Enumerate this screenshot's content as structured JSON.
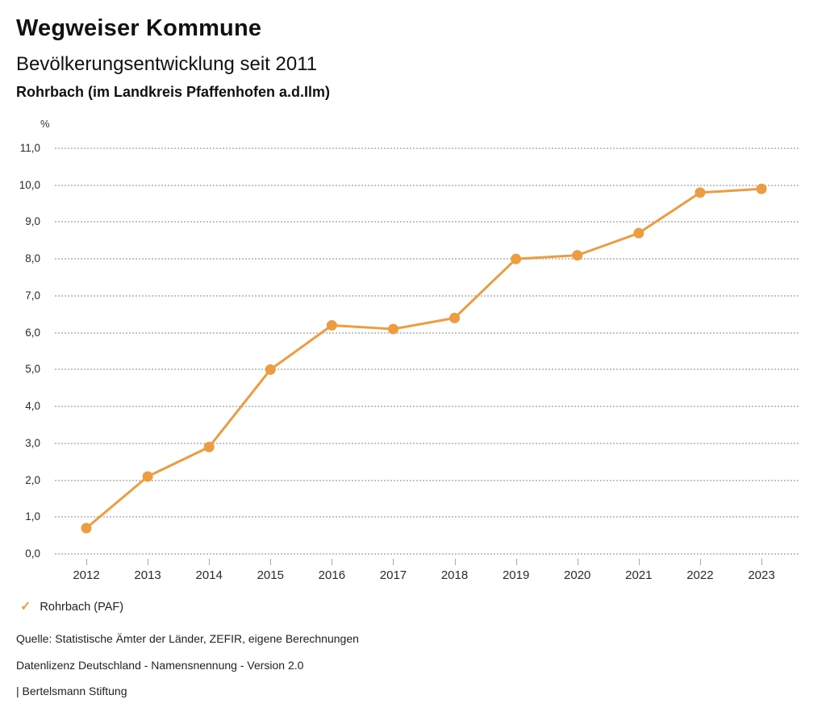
{
  "header": {
    "title": "Wegweiser Kommune",
    "subtitle": "Bevölkerungsentwicklung seit 2011",
    "region_line": "Rohrbach (im Landkreis Pfaffenhofen a.d.Ilm)"
  },
  "chart_data": {
    "type": "line",
    "title": "Bevölkerungsentwicklung seit 2011",
    "xlabel": "",
    "ylabel": "%",
    "unit_label": "%",
    "categories": [
      "2012",
      "2013",
      "2014",
      "2015",
      "2016",
      "2017",
      "2018",
      "2019",
      "2020",
      "2021",
      "2022",
      "2023"
    ],
    "series": [
      {
        "name": "Rohrbach (PAF)",
        "values": [
          0.7,
          2.1,
          2.9,
          5.0,
          6.2,
          6.1,
          6.4,
          8.0,
          8.1,
          8.7,
          9.8,
          9.9
        ],
        "color": "#ED9C42"
      }
    ],
    "ylim": [
      0,
      11
    ],
    "ytick_values": [
      0,
      1,
      2,
      3,
      4,
      5,
      6,
      7,
      8,
      9,
      10,
      11
    ],
    "ytick_labels": [
      "0,0",
      "1,0",
      "2,0",
      "3,0",
      "4,0",
      "5,0",
      "6,0",
      "7,0",
      "8,0",
      "9,0",
      "10,0",
      "11,0"
    ],
    "grid": "horizontal-dotted",
    "legend_position": "bottom-left"
  },
  "legend": {
    "check_icon": "✓",
    "label": "Rohrbach (PAF)"
  },
  "footer": {
    "source": "Quelle: Statistische Ämter der Länder, ZEFIR, eigene Berechnungen",
    "license": "Datenlizenz Deutschland - Namensnennung - Version 2.0",
    "attribution": "| Bertelsmann Stiftung"
  },
  "colors": {
    "accent": "#ED9C42",
    "grid": "#c3c3c3",
    "tick": "#a9a9a9",
    "text": "#1a1a1a"
  }
}
